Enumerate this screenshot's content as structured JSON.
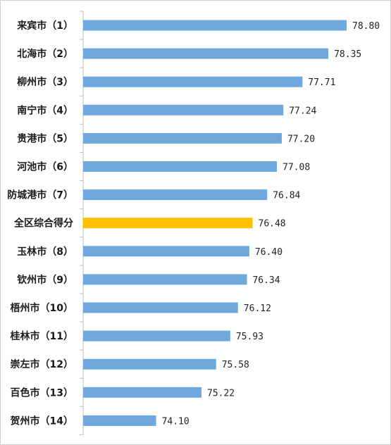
{
  "chart_data": {
    "type": "bar",
    "orientation": "horizontal",
    "title": "",
    "xlabel": "",
    "ylabel": "",
    "categories": [
      "来宾市（1）",
      "北海市（2）",
      "柳州市（3）",
      "南宁市（4）",
      "贵港市（5）",
      "河池市（6）",
      "防城港市（7）",
      "全区综合得分",
      "玉林市（8）",
      "钦州市（9）",
      "梧州市（10）",
      "桂林市（11）",
      "崇左市（12）",
      "百色市（13）",
      "贺州市（14）"
    ],
    "values": [
      78.8,
      78.35,
      77.71,
      77.24,
      77.2,
      77.08,
      76.84,
      76.48,
      76.4,
      76.34,
      76.12,
      75.93,
      75.58,
      75.22,
      74.1
    ],
    "value_labels": [
      "78.80",
      "78.35",
      "77.71",
      "77.24",
      "77.20",
      "77.08",
      "76.84",
      "76.48",
      "76.40",
      "76.34",
      "76.12",
      "75.93",
      "75.58",
      "75.22",
      "74.10"
    ],
    "xlim": [
      72.3,
      78.8
    ],
    "highlight_category": "全区综合得分",
    "colors": {
      "bar": "#6fa8dc",
      "highlight": "#ffc000",
      "axis": "#bfbfbf"
    },
    "grid": false,
    "legend": "none"
  }
}
